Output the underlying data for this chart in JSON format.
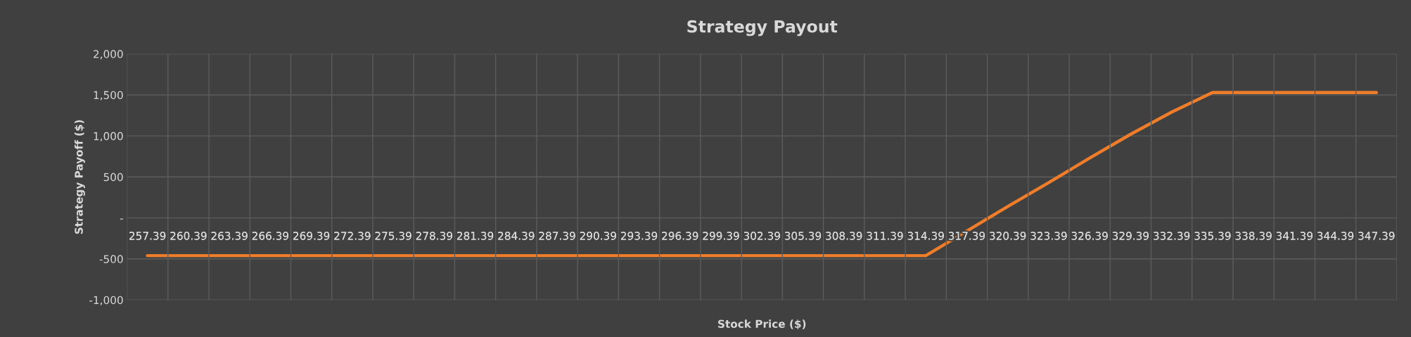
{
  "chart_data": {
    "type": "line",
    "title": "Strategy Payout",
    "xlabel": "Stock Price ($)",
    "ylabel": "Strategy Payoff ($)",
    "categories": [
      "257.39",
      "260.39",
      "263.39",
      "266.39",
      "269.39",
      "272.39",
      "275.39",
      "278.39",
      "281.39",
      "284.39",
      "287.39",
      "290.39",
      "293.39",
      "296.39",
      "299.39",
      "302.39",
      "305.39",
      "308.39",
      "311.39",
      "314.39",
      "317.39",
      "320.39",
      "323.39",
      "326.39",
      "329.39",
      "332.39",
      "335.39",
      "338.39",
      "341.39",
      "344.39",
      "347.39"
    ],
    "series": [
      {
        "color": "#f07d2a",
        "values": [
          -460,
          -460,
          -460,
          -460,
          -460,
          -460,
          -460,
          -460,
          -460,
          -460,
          -460,
          -460,
          -460,
          -460,
          -460,
          -460,
          -460,
          -460,
          -460,
          -460,
          -160,
          140,
          430,
          730,
          1020,
          1290,
          1530,
          1530,
          1530,
          1530,
          1530
        ]
      }
    ],
    "ylim": [
      -1000,
      2000
    ],
    "yticks": [
      {
        "value": -1000,
        "label": "-1,000"
      },
      -500,
      {
        "value": 0,
        "label": "-"
      },
      500,
      {
        "value": 1000,
        "label": "1,000"
      },
      {
        "value": 1500,
        "label": "1,500"
      },
      {
        "value": 2000,
        "label": "2,000"
      }
    ],
    "grid": true,
    "marker": "none",
    "line_style": "solid"
  }
}
